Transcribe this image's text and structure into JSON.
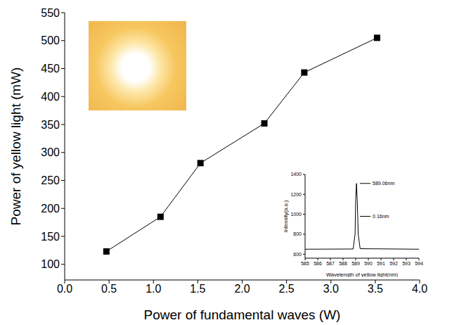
{
  "chart_data": [
    {
      "type": "line",
      "x_label": "Power of fundamental waves (W)",
      "y_label": "Power of yellow light (mW)",
      "x": [
        0.47,
        1.08,
        1.53,
        2.25,
        2.7,
        3.52
      ],
      "values": [
        123,
        185,
        281,
        352,
        443,
        505
      ],
      "color": "#000000",
      "marker": "square",
      "xlim": [
        0,
        4
      ],
      "xticks": [
        {
          "value": 0,
          "label": "0.0"
        },
        {
          "value": 0.5,
          "label": "0.5"
        },
        {
          "value": 1,
          "label": "1.0"
        },
        {
          "value": 1.5,
          "label": "1.5"
        },
        {
          "value": 2,
          "label": "2.0"
        },
        {
          "value": 2.5,
          "label": "2.5"
        },
        {
          "value": 3,
          "label": "3.0"
        },
        {
          "value": 3.5,
          "label": "3.5"
        },
        {
          "value": 4,
          "label": "4.0"
        }
      ],
      "ylim": [
        72,
        550
      ],
      "yticks": [
        100,
        150,
        200,
        250,
        300,
        350,
        400,
        450,
        500,
        550
      ]
    },
    {
      "type": "line",
      "x_label": "Wavelength of yellow light(nm)",
      "y_label": "Intensity(a.u.)",
      "x": [
        585,
        588.8,
        588.95,
        589.0,
        589.06,
        589.12,
        589.2,
        589.35,
        594
      ],
      "values": [
        650,
        652,
        800,
        1150,
        1310,
        1150,
        800,
        655,
        650
      ],
      "color": "#000000",
      "xlim": [
        585,
        594
      ],
      "xticks": [
        585,
        586,
        587,
        588,
        589,
        590,
        591,
        592,
        593,
        594
      ],
      "ylim": [
        560,
        1400
      ],
      "yticks": [
        600,
        800,
        1000,
        1200,
        1400
      ],
      "annotations": [
        {
          "text": "589.06nm",
          "x": 589.06,
          "y": 1310
        },
        {
          "text": "0.16nm",
          "x": 589.06,
          "y": 980
        }
      ]
    }
  ]
}
